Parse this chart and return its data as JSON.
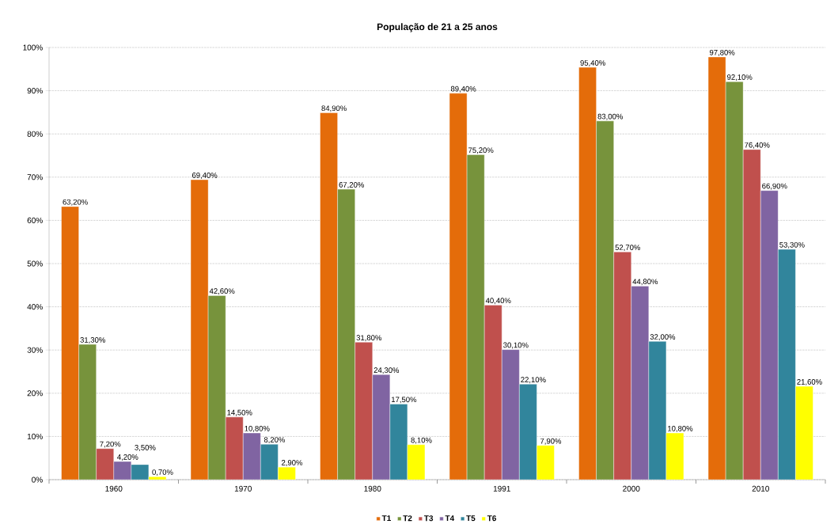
{
  "chart_data": {
    "type": "bar",
    "title": "População de 21 a 25 anos",
    "categories": [
      "1960",
      "1970",
      "1980",
      "1991",
      "2000",
      "2010"
    ],
    "series": [
      {
        "name": "T1",
        "color": "#e46c0a",
        "values": [
          63.2,
          69.4,
          84.9,
          89.4,
          95.4,
          97.8
        ],
        "value_labels": [
          "63,20%",
          "69,40%",
          "84,90%",
          "89,40%",
          "95,40%",
          "97,80%"
        ]
      },
      {
        "name": "T2",
        "color": "#77933c",
        "values": [
          31.3,
          42.6,
          67.2,
          75.2,
          83.0,
          92.1
        ],
        "value_labels": [
          "31,30%",
          "42,60%",
          "67,20%",
          "75,20%",
          "83,00%",
          "92,10%"
        ]
      },
      {
        "name": "T3",
        "color": "#c0504d",
        "values": [
          7.2,
          14.5,
          31.8,
          40.4,
          52.7,
          76.4
        ],
        "value_labels": [
          "7,20%",
          "14,50%",
          "31,80%",
          "40,40%",
          "52,70%",
          "76,40%"
        ]
      },
      {
        "name": "T4",
        "color": "#8064a2",
        "values": [
          4.2,
          10.8,
          24.3,
          30.1,
          44.8,
          66.9
        ],
        "value_labels": [
          "4,20%",
          "10,80%",
          "24,30%",
          "30,10%",
          "44,80%",
          "66,90%"
        ]
      },
      {
        "name": "T5",
        "color": "#31859c",
        "values": [
          3.5,
          8.2,
          17.5,
          22.1,
          32.0,
          53.3
        ],
        "value_labels": [
          "3,50%",
          "8,20%",
          "17,50%",
          "22,10%",
          "32,00%",
          "53,30%"
        ]
      },
      {
        "name": "T6",
        "color": "#ffff00",
        "values": [
          0.7,
          2.9,
          8.1,
          7.9,
          10.8,
          21.6
        ],
        "value_labels": [
          "0,70%",
          "2,90%",
          "8,10%",
          "7,90%",
          "10,80%",
          "21,60%"
        ]
      }
    ],
    "ylim": [
      0,
      100
    ],
    "yticks": [
      {
        "value": 0,
        "label": "0%"
      },
      {
        "value": 10,
        "label": "10%"
      },
      {
        "value": 20,
        "label": "20%"
      },
      {
        "value": 30,
        "label": "30%"
      },
      {
        "value": 40,
        "label": "40%"
      },
      {
        "value": 50,
        "label": "50%"
      },
      {
        "value": 60,
        "label": "60%"
      },
      {
        "value": 70,
        "label": "70%"
      },
      {
        "value": 80,
        "label": "80%"
      },
      {
        "value": 90,
        "label": "90%"
      },
      {
        "value": 100,
        "label": "100%"
      }
    ],
    "grid": "y",
    "legend": "bottom"
  }
}
